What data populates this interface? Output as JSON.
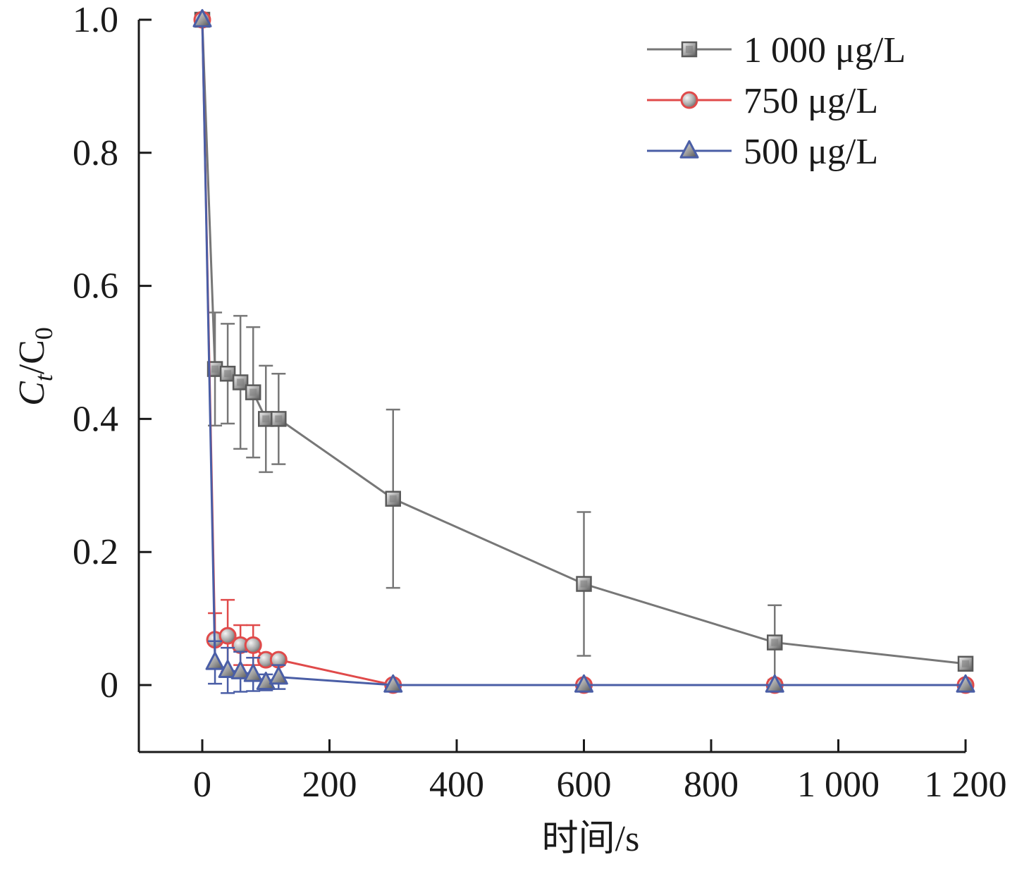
{
  "chart_data": {
    "type": "line",
    "xlabel": "时间/s",
    "ylabel_main": "C",
    "ylabel_sub": "t",
    "ylabel_mid": "/C",
    "ylabel_sub2": "0",
    "xlim": [
      -100,
      1200
    ],
    "ylim": [
      -0.1,
      1.0
    ],
    "xticks": [
      0,
      200,
      400,
      600,
      800,
      1000,
      1200
    ],
    "xtick_labels": [
      "0",
      "200",
      "400",
      "600",
      "800",
      "1 000",
      "1 200"
    ],
    "yticks": [
      0,
      0.2,
      0.4,
      0.6,
      0.8,
      1.0
    ],
    "ytick_labels": [
      "0",
      "0.2",
      "0.4",
      "0.6",
      "0.8",
      "1.0"
    ],
    "legend_position": "top-right",
    "series": [
      {
        "name": "1 000 μg/L",
        "marker": "square",
        "line_color": "#777777",
        "marker_color": "#9a9a9a",
        "x": [
          0,
          20,
          40,
          60,
          80,
          100,
          120,
          300,
          600,
          900,
          1200
        ],
        "y": [
          1.0,
          0.475,
          0.468,
          0.455,
          0.44,
          0.4,
          0.4,
          0.28,
          0.152,
          0.064,
          0.032
        ],
        "err": [
          0,
          0.085,
          0.075,
          0.1,
          0.098,
          0.08,
          0.068,
          0.134,
          0.108,
          0.056,
          0
        ]
      },
      {
        "name": "750 μg/L",
        "marker": "circle",
        "line_color": "#e04a4a",
        "marker_color": "#a8a8a8",
        "x": [
          0,
          20,
          40,
          60,
          80,
          100,
          120,
          300,
          600,
          900,
          1200
        ],
        "y": [
          1.0,
          0.068,
          0.074,
          0.06,
          0.06,
          0.038,
          0.038,
          0,
          0,
          0,
          0
        ],
        "err": [
          0,
          0.04,
          0.054,
          0.03,
          0.03,
          0,
          0,
          0,
          0,
          0,
          0
        ]
      },
      {
        "name": "500 μg/L",
        "marker": "triangle",
        "line_color": "#4a5ea6",
        "marker_color": "#9a9a9a",
        "x": [
          0,
          20,
          40,
          60,
          80,
          100,
          120,
          300,
          600,
          900,
          1200
        ],
        "y": [
          1.0,
          0.034,
          0.022,
          0.02,
          0.016,
          0.004,
          0.012,
          0,
          0,
          0,
          0
        ],
        "err": [
          0,
          0.032,
          0.034,
          0.03,
          0.025,
          0.012,
          0.018,
          0,
          0,
          0,
          0
        ]
      }
    ]
  }
}
